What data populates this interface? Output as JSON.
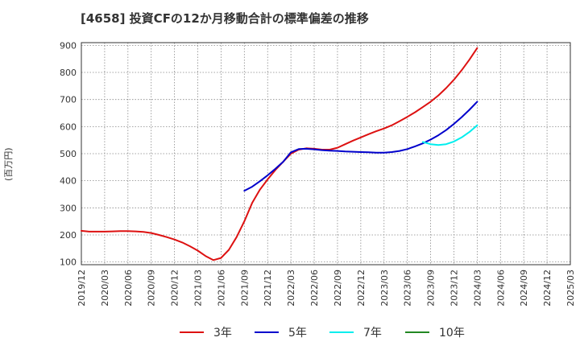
{
  "chart_data": {
    "type": "line",
    "title": "[4658]  投資CFの12か月移動合計の標準偏差の推移",
    "ylabel": "(百万円)",
    "xlabel": "",
    "ylim": [
      90,
      910
    ],
    "yticks": [
      100,
      200,
      300,
      400,
      500,
      600,
      700,
      800,
      900
    ],
    "x_range": [
      "2019-12",
      "2025-03"
    ],
    "xticks": [
      "2019/12",
      "2020/03",
      "2020/06",
      "2020/09",
      "2020/12",
      "2021/03",
      "2021/06",
      "2021/09",
      "2021/12",
      "2022/03",
      "2022/06",
      "2022/09",
      "2022/12",
      "2023/03",
      "2023/06",
      "2023/09",
      "2023/12",
      "2024/03",
      "2024/06",
      "2024/09",
      "2024/12",
      "2025/03"
    ],
    "grid": true,
    "legend_position": "bottom",
    "series": [
      {
        "name": "3年",
        "color": "#dd1111",
        "points": [
          [
            "2019-12",
            215
          ],
          [
            "2020-01",
            212
          ],
          [
            "2020-02",
            212
          ],
          [
            "2020-03",
            212
          ],
          [
            "2020-04",
            213
          ],
          [
            "2020-05",
            214
          ],
          [
            "2020-06",
            214
          ],
          [
            "2020-07",
            213
          ],
          [
            "2020-08",
            211
          ],
          [
            "2020-09",
            207
          ],
          [
            "2020-10",
            200
          ],
          [
            "2020-11",
            192
          ],
          [
            "2020-12",
            183
          ],
          [
            "2021-01",
            172
          ],
          [
            "2021-02",
            158
          ],
          [
            "2021-03",
            142
          ],
          [
            "2021-04",
            122
          ],
          [
            "2021-05",
            107
          ],
          [
            "2021-06",
            115
          ],
          [
            "2021-07",
            145
          ],
          [
            "2021-08",
            192
          ],
          [
            "2021-09",
            250
          ],
          [
            "2021-10",
            318
          ],
          [
            "2021-11",
            367
          ],
          [
            "2021-12",
            405
          ],
          [
            "2022-01",
            440
          ],
          [
            "2022-02",
            470
          ],
          [
            "2022-03",
            500
          ],
          [
            "2022-04",
            515
          ],
          [
            "2022-05",
            520
          ],
          [
            "2022-06",
            518
          ],
          [
            "2022-07",
            515
          ],
          [
            "2022-08",
            515
          ],
          [
            "2022-09",
            522
          ],
          [
            "2022-10",
            535
          ],
          [
            "2022-11",
            548
          ],
          [
            "2022-12",
            560
          ],
          [
            "2023-01",
            572
          ],
          [
            "2023-02",
            583
          ],
          [
            "2023-03",
            593
          ],
          [
            "2023-04",
            605
          ],
          [
            "2023-05",
            620
          ],
          [
            "2023-06",
            636
          ],
          [
            "2023-07",
            653
          ],
          [
            "2023-08",
            672
          ],
          [
            "2023-09",
            692
          ],
          [
            "2023-10",
            715
          ],
          [
            "2023-11",
            742
          ],
          [
            "2023-12",
            773
          ],
          [
            "2024-01",
            808
          ],
          [
            "2024-02",
            847
          ],
          [
            "2024-03",
            890
          ]
        ]
      },
      {
        "name": "5年",
        "color": "#0000cc",
        "points": [
          [
            "2021-09",
            363
          ],
          [
            "2021-10",
            378
          ],
          [
            "2021-11",
            398
          ],
          [
            "2021-12",
            420
          ],
          [
            "2022-01",
            444
          ],
          [
            "2022-02",
            470
          ],
          [
            "2022-03",
            505
          ],
          [
            "2022-04",
            517
          ],
          [
            "2022-05",
            518
          ],
          [
            "2022-06",
            516
          ],
          [
            "2022-07",
            513
          ],
          [
            "2022-08",
            511
          ],
          [
            "2022-09",
            510
          ],
          [
            "2022-10",
            508
          ],
          [
            "2022-11",
            507
          ],
          [
            "2022-12",
            506
          ],
          [
            "2023-01",
            505
          ],
          [
            "2023-02",
            504
          ],
          [
            "2023-03",
            504
          ],
          [
            "2023-04",
            506
          ],
          [
            "2023-05",
            510
          ],
          [
            "2023-06",
            517
          ],
          [
            "2023-07",
            527
          ],
          [
            "2023-08",
            538
          ],
          [
            "2023-09",
            552
          ],
          [
            "2023-10",
            568
          ],
          [
            "2023-11",
            587
          ],
          [
            "2023-12",
            610
          ],
          [
            "2024-01",
            635
          ],
          [
            "2024-02",
            662
          ],
          [
            "2024-03",
            692
          ]
        ]
      },
      {
        "name": "7年",
        "color": "#00eeee",
        "points": [
          [
            "2023-08",
            543
          ],
          [
            "2023-09",
            535
          ],
          [
            "2023-10",
            532
          ],
          [
            "2023-11",
            535
          ],
          [
            "2023-12",
            545
          ],
          [
            "2024-01",
            560
          ],
          [
            "2024-02",
            580
          ],
          [
            "2024-03",
            605
          ]
        ]
      },
      {
        "name": "10年",
        "color": "#228822",
        "points": []
      }
    ]
  }
}
